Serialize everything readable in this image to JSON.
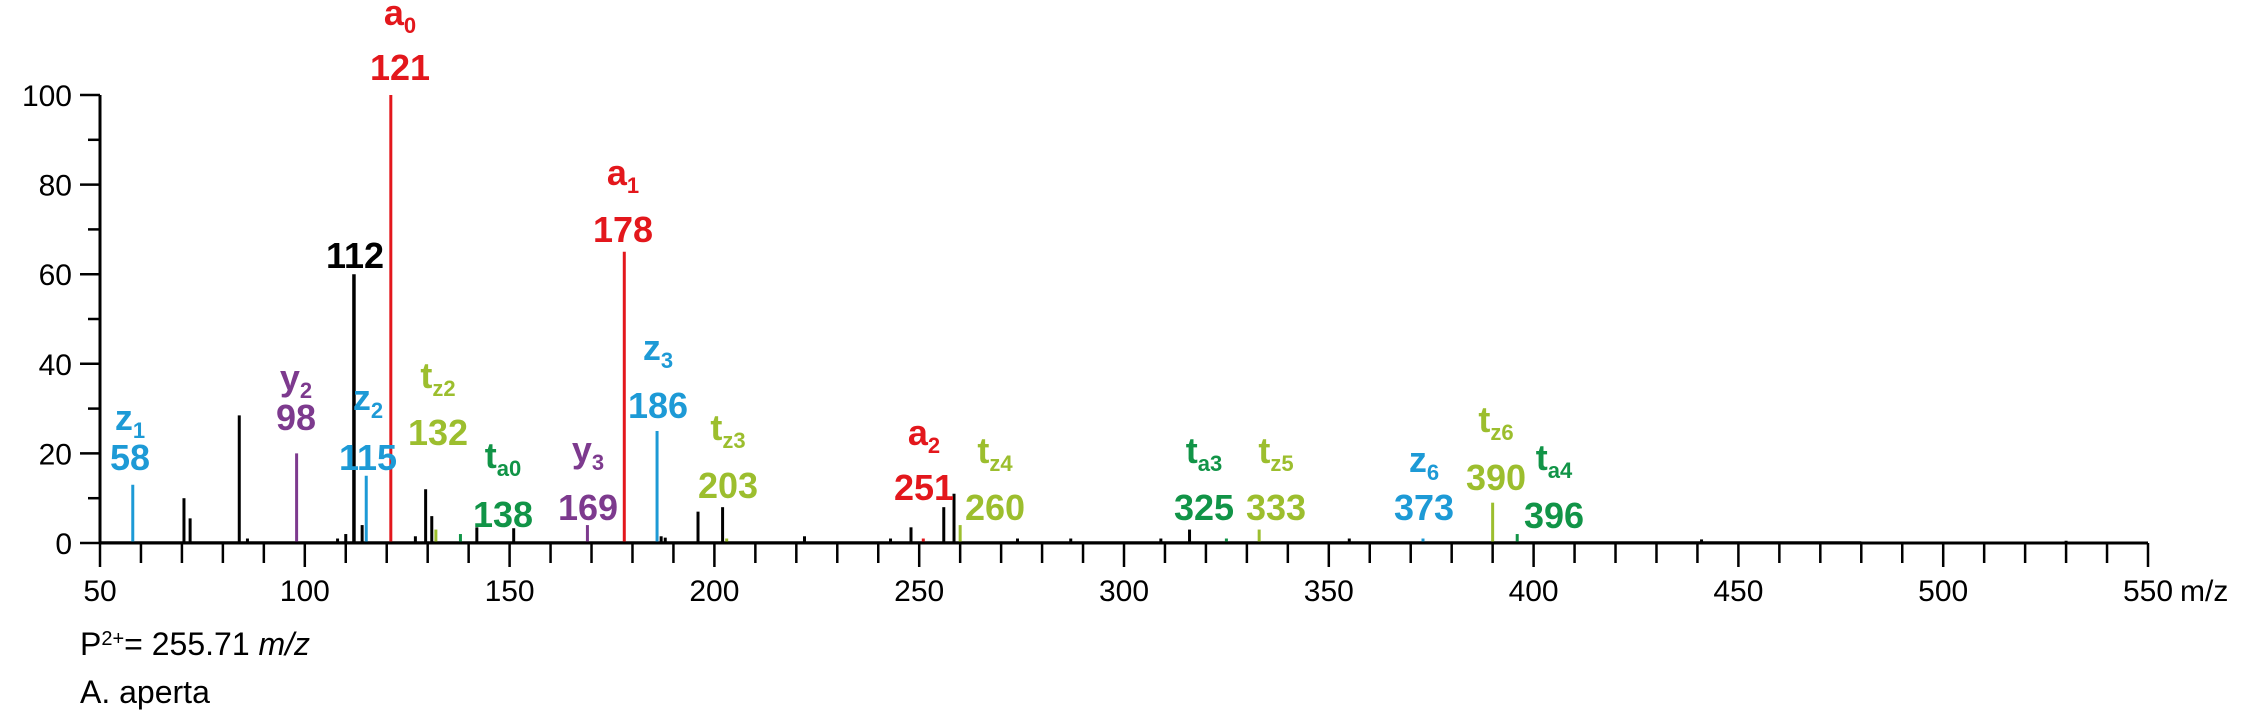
{
  "chart_data": {
    "type": "bar",
    "title": "",
    "xlabel": "m/z",
    "ylabel": "",
    "xlim": [
      50,
      550
    ],
    "ylim": [
      0,
      100
    ],
    "x_ticks": [
      "50",
      "100",
      "150",
      "200",
      "250",
      "300",
      "350",
      "400",
      "450",
      "500",
      "550"
    ],
    "y_ticks": [
      "0",
      "20",
      "40",
      "60",
      "80",
      "100"
    ],
    "colors": {
      "unassigned": "#000000",
      "a": "#e3171c",
      "z": "#1d9ad6",
      "y": "#7d3a8e",
      "tz": "#9cbe2e",
      "ta": "#119447"
    },
    "annotated_peaks": [
      {
        "letter": "z",
        "sub": "1",
        "mz_label": "58",
        "x": 58,
        "y": 13,
        "type": "z"
      },
      {
        "letter": "y",
        "sub": "2",
        "mz_label": "98",
        "x": 98,
        "y": 20,
        "type": "y"
      },
      {
        "letter": "",
        "sub": "",
        "mz_label": "112",
        "x": 112,
        "y": 60,
        "type": "unassigned"
      },
      {
        "letter": "z",
        "sub": "2",
        "mz_label": "115",
        "x": 115,
        "y": 15,
        "type": "z"
      },
      {
        "letter": "a",
        "sub": "0",
        "mz_label": "121",
        "x": 121,
        "y": 100,
        "type": "a"
      },
      {
        "letter": "t",
        "sub": "z2",
        "mz_label": "132",
        "x": 132,
        "y": 3,
        "type": "tz"
      },
      {
        "letter": "t",
        "sub": "a0",
        "mz_label": "138",
        "x": 138,
        "y": 2,
        "type": "ta"
      },
      {
        "letter": "y",
        "sub": "3",
        "mz_label": "169",
        "x": 169,
        "y": 4,
        "type": "y"
      },
      {
        "letter": "a",
        "sub": "1",
        "mz_label": "178",
        "x": 178,
        "y": 65,
        "type": "a"
      },
      {
        "letter": "z",
        "sub": "3",
        "mz_label": "186",
        "x": 186,
        "y": 25,
        "type": "z"
      },
      {
        "letter": "t",
        "sub": "z3",
        "mz_label": "203",
        "x": 203,
        "y": 1,
        "type": "tz"
      },
      {
        "letter": "a",
        "sub": "2",
        "mz_label": "251",
        "x": 251,
        "y": 1,
        "type": "a"
      },
      {
        "letter": "t",
        "sub": "z4",
        "mz_label": "260",
        "x": 260,
        "y": 4,
        "type": "tz"
      },
      {
        "letter": "t",
        "sub": "a3",
        "mz_label": "325",
        "x": 325,
        "y": 1,
        "type": "ta"
      },
      {
        "letter": "t",
        "sub": "z5",
        "mz_label": "333",
        "x": 333,
        "y": 3,
        "type": "tz"
      },
      {
        "letter": "z",
        "sub": "6",
        "mz_label": "373",
        "x": 373,
        "y": 1,
        "type": "z"
      },
      {
        "letter": "t",
        "sub": "z6",
        "mz_label": "390",
        "x": 390,
        "y": 9,
        "type": "tz"
      },
      {
        "letter": "t",
        "sub": "a4",
        "mz_label": "396",
        "x": 396,
        "y": 2,
        "type": "ta"
      }
    ],
    "other_peaks": [
      {
        "x": 70.5,
        "y": 10
      },
      {
        "x": 72,
        "y": 5.5
      },
      {
        "x": 84,
        "y": 28.5
      },
      {
        "x": 86,
        "y": 1
      },
      {
        "x": 108,
        "y": 1
      },
      {
        "x": 110,
        "y": 2
      },
      {
        "x": 114,
        "y": 4
      },
      {
        "x": 127,
        "y": 1.5
      },
      {
        "x": 129.5,
        "y": 12
      },
      {
        "x": 131,
        "y": 6
      },
      {
        "x": 142,
        "y": 3.5
      },
      {
        "x": 151,
        "y": 3.3
      },
      {
        "x": 187,
        "y": 1.5
      },
      {
        "x": 188,
        "y": 1.2
      },
      {
        "x": 196,
        "y": 7
      },
      {
        "x": 202,
        "y": 8
      },
      {
        "x": 222,
        "y": 1.5
      },
      {
        "x": 243,
        "y": 1
      },
      {
        "x": 248,
        "y": 3.5
      },
      {
        "x": 256,
        "y": 8
      },
      {
        "x": 258.5,
        "y": 11
      },
      {
        "x": 274,
        "y": 1
      },
      {
        "x": 287,
        "y": 1
      },
      {
        "x": 309,
        "y": 1
      },
      {
        "x": 316,
        "y": 3
      },
      {
        "x": 355,
        "y": 1
      },
      {
        "x": 441,
        "y": 0.8
      },
      {
        "x": 530,
        "y": 0.5
      }
    ]
  },
  "footer": {
    "precursor_prefix": "P",
    "precursor_charge": "2+",
    "precursor_value": "= 255.71 ",
    "precursor_unit": "m/z",
    "species": "A. aperta"
  }
}
